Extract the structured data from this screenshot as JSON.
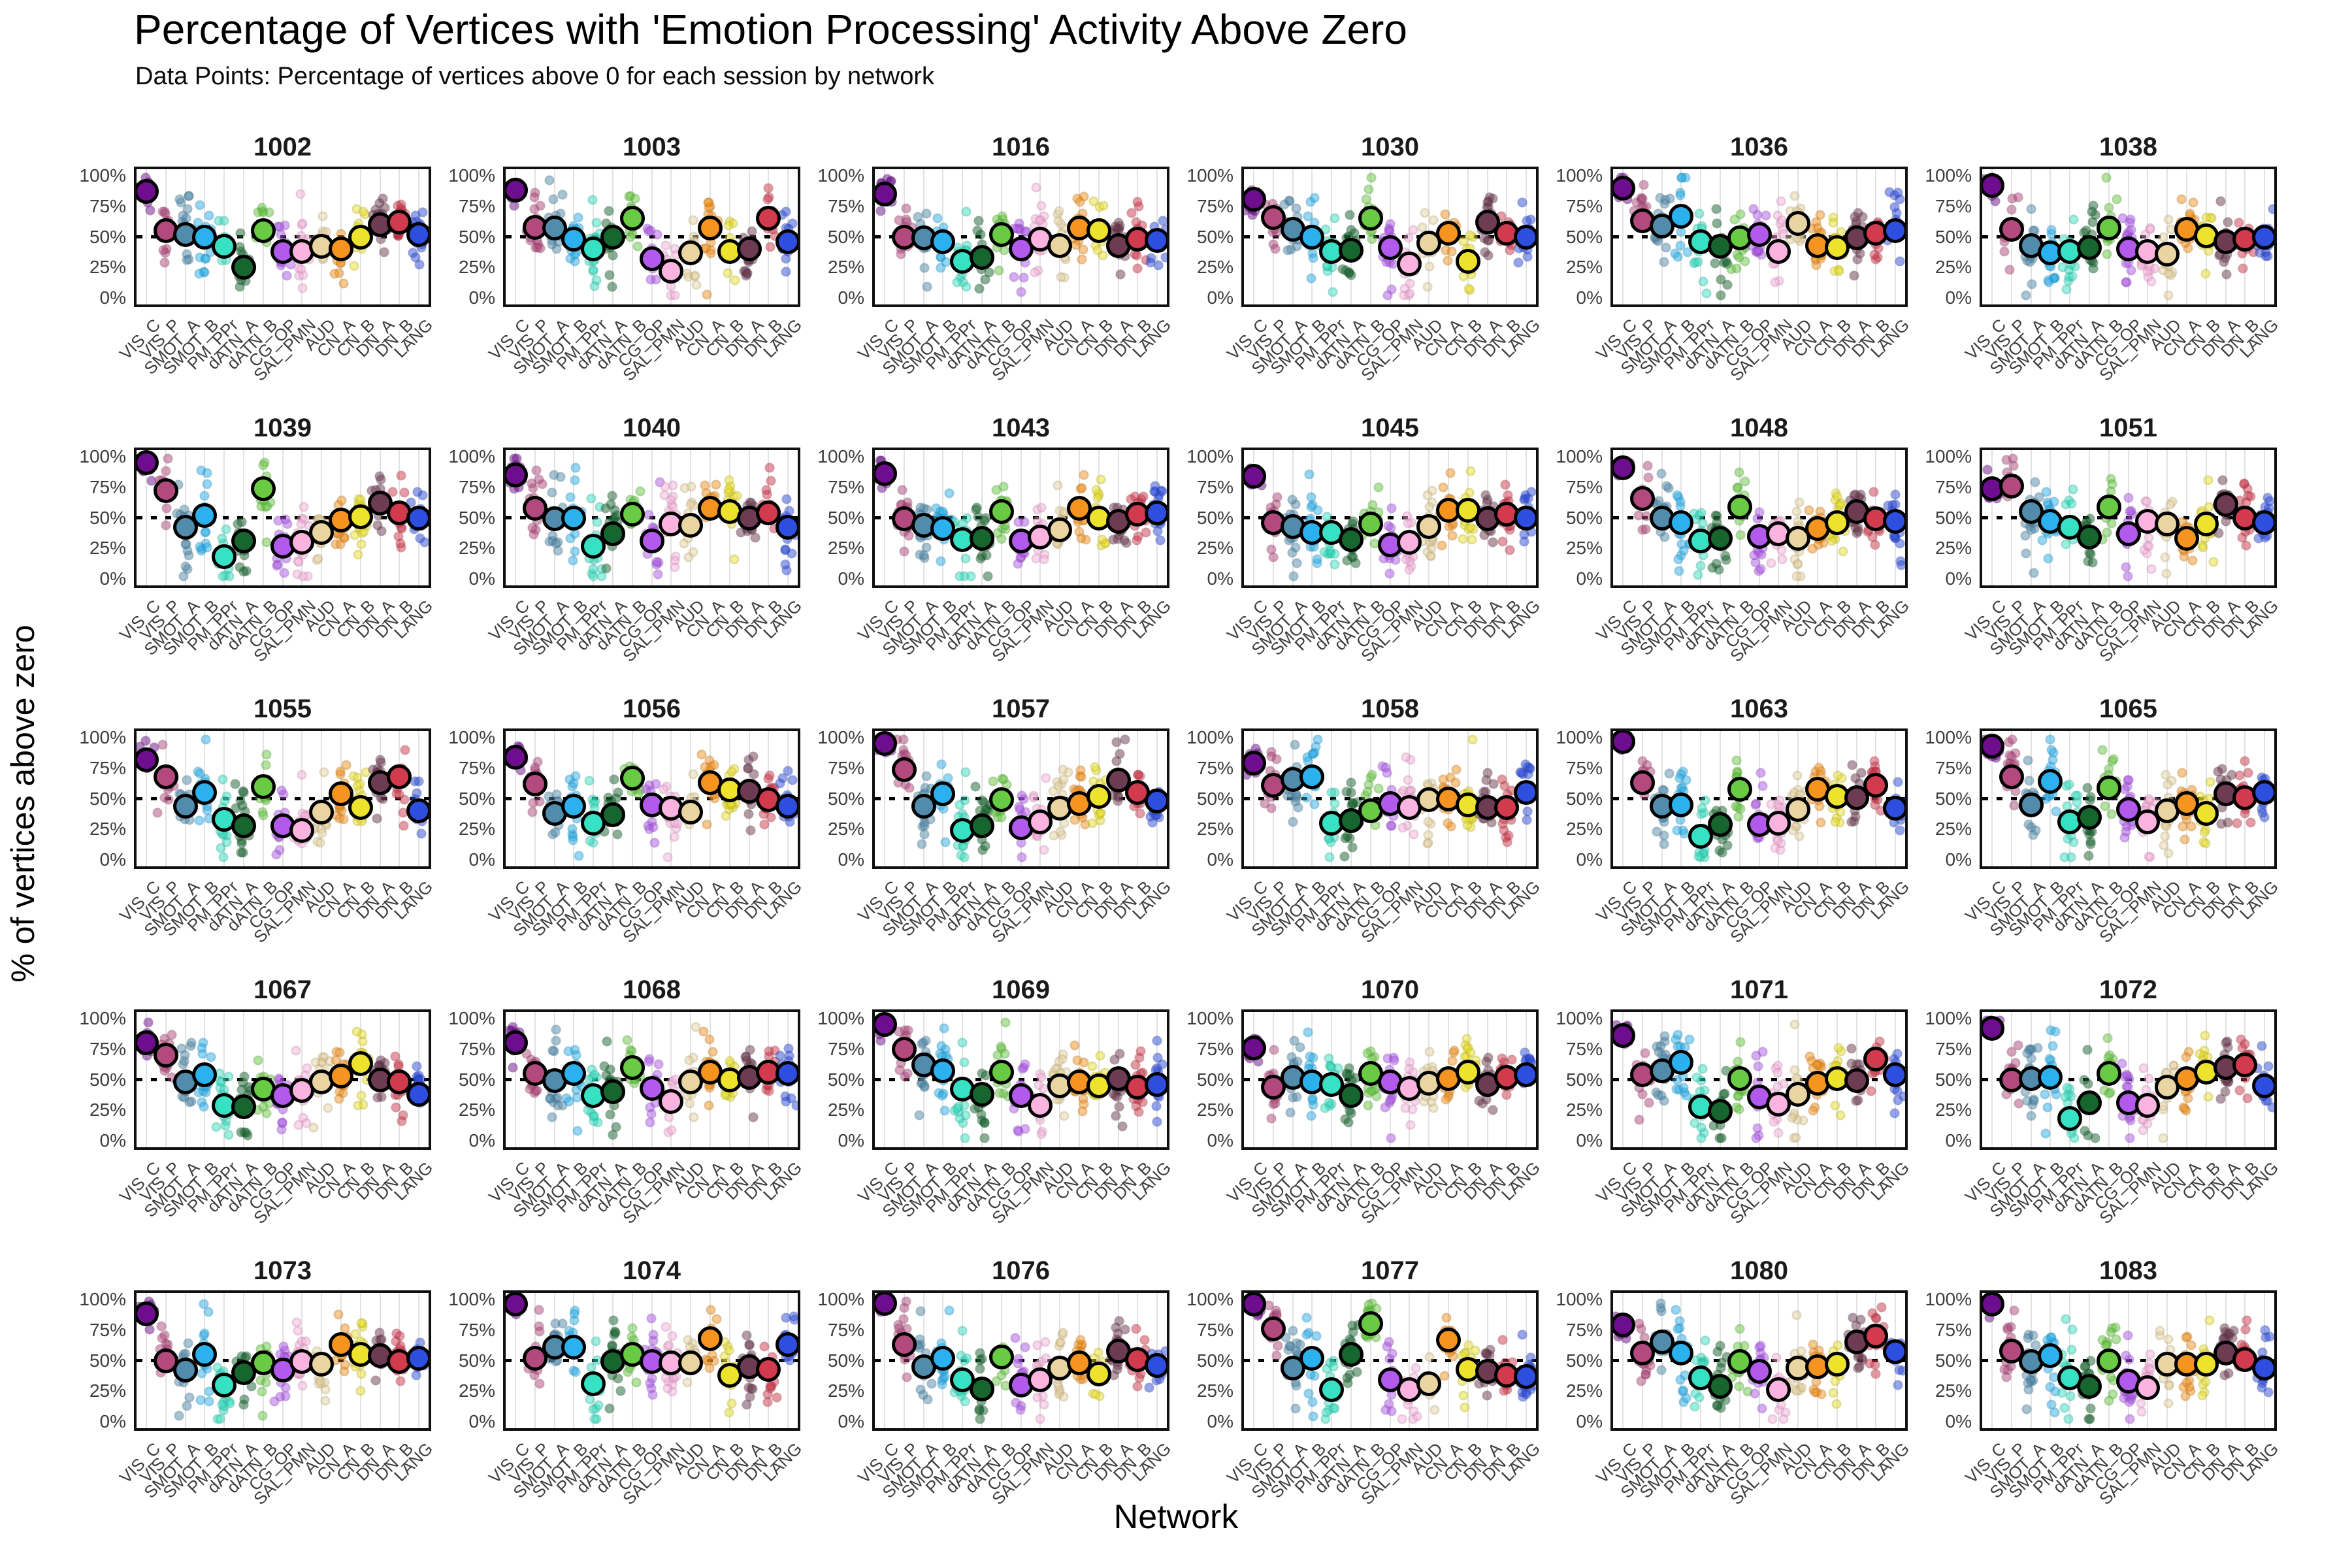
{
  "page": {
    "title": "Percentage of Vertices with 'Emotion Processing' Activity Above Zero",
    "subtitle": "Data Points: Percentage of vertices above 0 for each session by network",
    "xlabel": "Network",
    "ylabel": "% of vertices above zero"
  },
  "chart_data": {
    "type": "scatter",
    "subtype": "jittered-strip-with-means",
    "ylim": [
      0,
      100
    ],
    "y_ticks": [
      "100%",
      "75%",
      "50%",
      "25%",
      "0%"
    ],
    "y_tick_values": [
      100,
      75,
      50,
      25,
      0
    ],
    "reference_line": 50,
    "grid": "vertical-category-gridlines",
    "categories": [
      "VIS_C",
      "VIS_P",
      "SMOT_A",
      "SMOT_B",
      "PM_PPr",
      "dATN_A",
      "dATN_B",
      "CG_OP",
      "SAL_PMN",
      "AUD",
      "CN_A",
      "CN_B",
      "DN_A",
      "DN_B",
      "LANG"
    ],
    "colors": [
      "#6E0D8E",
      "#B34A7E",
      "#528CAD",
      "#2BB2EE",
      "#37E2C4",
      "#17662F",
      "#69CB43",
      "#B15AEC",
      "#FBB3DF",
      "#E9D5A1",
      "#F5941F",
      "#EDE32C",
      "#6E3C52",
      "#D23A4E",
      "#2E4EDF"
    ],
    "jitter_sd": [
      6,
      13,
      16,
      17,
      16,
      15,
      13,
      15,
      16,
      15,
      13,
      14,
      13,
      13,
      13
    ],
    "sessions_per_network": 16,
    "panels": [
      {
        "id": "1002",
        "means": [
          87,
          55,
          52,
          50,
          42,
          25,
          55,
          38,
          38,
          42,
          40,
          50,
          60,
          62,
          52
        ]
      },
      {
        "id": "1003",
        "means": [
          88,
          58,
          57,
          48,
          40,
          50,
          65,
          32,
          22,
          37,
          57,
          38,
          40,
          65,
          46
        ]
      },
      {
        "id": "1016",
        "means": [
          85,
          50,
          49,
          46,
          30,
          33,
          52,
          40,
          48,
          43,
          57,
          55,
          43,
          48,
          47
        ]
      },
      {
        "id": "1030",
        "means": [
          81,
          66,
          56,
          50,
          38,
          39,
          65,
          41,
          28,
          45,
          53,
          30,
          62,
          53,
          50
        ]
      },
      {
        "id": "1036",
        "means": [
          90,
          63,
          59,
          67,
          46,
          42,
          49,
          52,
          38,
          61,
          43,
          41,
          49,
          53,
          55
        ]
      },
      {
        "id": "1038",
        "means": [
          92,
          56,
          43,
          37,
          38,
          41,
          57,
          40,
          38,
          36,
          56,
          51,
          46,
          48,
          50
        ]
      },
      {
        "id": "1039",
        "means": [
          95,
          72,
          42,
          52,
          18,
          31,
          74,
          27,
          30,
          38,
          48,
          51,
          62,
          54,
          50
        ]
      },
      {
        "id": "1040",
        "means": [
          85,
          58,
          49,
          50,
          27,
          37,
          53,
          31,
          45,
          44,
          58,
          55,
          50,
          54,
          42
        ]
      },
      {
        "id": "1043",
        "means": [
          86,
          49,
          44,
          41,
          32,
          33,
          55,
          31,
          34,
          40,
          58,
          50,
          47,
          53,
          54
        ]
      },
      {
        "id": "1045",
        "means": [
          84,
          46,
          43,
          38,
          38,
          32,
          45,
          28,
          30,
          43,
          56,
          56,
          49,
          53,
          50
        ]
      },
      {
        "id": "1048",
        "means": [
          91,
          66,
          50,
          46,
          31,
          33,
          59,
          35,
          37,
          33,
          41,
          46,
          55,
          49,
          47
        ]
      },
      {
        "id": "1051",
        "means": [
          74,
          76,
          55,
          47,
          42,
          34,
          59,
          37,
          47,
          45,
          33,
          45,
          61,
          50,
          46
        ]
      },
      {
        "id": "1055",
        "means": [
          82,
          68,
          44,
          55,
          33,
          28,
          60,
          28,
          24,
          39,
          54,
          43,
          63,
          68,
          40
        ]
      },
      {
        "id": "1056",
        "means": [
          84,
          62,
          38,
          44,
          30,
          37,
          67,
          45,
          42,
          39,
          63,
          57,
          56,
          49,
          44
        ]
      },
      {
        "id": "1057",
        "means": [
          95,
          74,
          44,
          54,
          24,
          28,
          49,
          26,
          31,
          42,
          46,
          52,
          65,
          55,
          48
        ]
      },
      {
        "id": "1058",
        "means": [
          79,
          61,
          66,
          68,
          30,
          32,
          40,
          46,
          43,
          49,
          50,
          45,
          43,
          43,
          55
        ]
      },
      {
        "id": "1063",
        "means": [
          97,
          63,
          44,
          45,
          19,
          29,
          58,
          29,
          30,
          41,
          58,
          52,
          51,
          61,
          42
        ]
      },
      {
        "id": "1065",
        "means": [
          93,
          68,
          45,
          64,
          31,
          35,
          59,
          41,
          31,
          40,
          46,
          38,
          54,
          51,
          55
        ]
      },
      {
        "id": "1067",
        "means": [
          80,
          70,
          48,
          54,
          29,
          28,
          42,
          37,
          41,
          48,
          53,
          63,
          50,
          48,
          38
        ]
      },
      {
        "id": "1068",
        "means": [
          80,
          55,
          49,
          55,
          37,
          40,
          60,
          43,
          32,
          48,
          56,
          50,
          52,
          56,
          55
        ]
      },
      {
        "id": "1069",
        "means": [
          95,
          75,
          62,
          57,
          42,
          38,
          56,
          37,
          29,
          45,
          48,
          45,
          51,
          44,
          46
        ]
      },
      {
        "id": "1070",
        "means": [
          76,
          44,
          52,
          48,
          46,
          37,
          55,
          48,
          43,
          47,
          51,
          56,
          46,
          52,
          54
        ]
      },
      {
        "id": "1071",
        "means": [
          86,
          54,
          57,
          64,
          28,
          24,
          51,
          36,
          30,
          38,
          47,
          51,
          49,
          67,
          54
        ]
      },
      {
        "id": "1072",
        "means": [
          92,
          50,
          51,
          52,
          18,
          31,
          55,
          31,
          29,
          44,
          51,
          56,
          60,
          62,
          45
        ]
      },
      {
        "id": "1073",
        "means": [
          88,
          50,
          42,
          55,
          30,
          40,
          48,
          42,
          49,
          47,
          63,
          55,
          54,
          49,
          52
        ]
      },
      {
        "id": "1074",
        "means": [
          96,
          52,
          61,
          61,
          31,
          49,
          55,
          49,
          48,
          48,
          68,
          38,
          45,
          43,
          63
        ]
      },
      {
        "id": "1076",
        "means": [
          97,
          63,
          45,
          52,
          34,
          27,
          53,
          30,
          34,
          44,
          48,
          39,
          58,
          51,
          46
        ]
      },
      {
        "id": "1077",
        "means": [
          96,
          76,
          44,
          52,
          26,
          55,
          80,
          34,
          26,
          31,
          67,
          43,
          41,
          38,
          37
        ]
      },
      {
        "id": "1080",
        "means": [
          79,
          56,
          65,
          56,
          36,
          29,
          49,
          41,
          26,
          44,
          45,
          47,
          65,
          70,
          57
        ]
      },
      {
        "id": "1083",
        "means": [
          96,
          58,
          49,
          54,
          36,
          29,
          50,
          33,
          28,
          47,
          47,
          47,
          56,
          51,
          44
        ]
      }
    ]
  }
}
